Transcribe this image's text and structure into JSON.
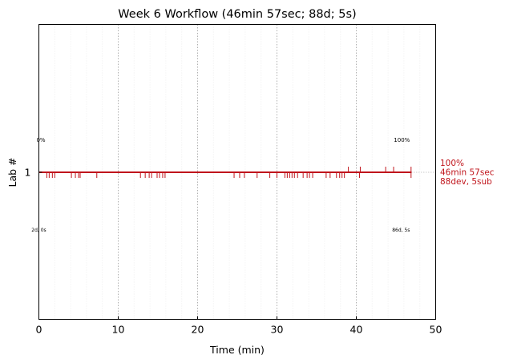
{
  "chart_data": {
    "type": "line",
    "title": "Week 6 Workflow (46min 57sec; 88d; 5s)",
    "xlabel": "Time (min)",
    "ylabel": "Lab #",
    "xlim": [
      0,
      50
    ],
    "xticks": [
      "0",
      "10",
      "20",
      "30",
      "40",
      "50"
    ],
    "yticks": [
      "1"
    ],
    "grid": "vertical dotted at major ticks, faint at minor ticks",
    "colors": {
      "line": "#c0151c",
      "grid": "#b0b0b0",
      "axis": "#000000"
    },
    "series": [
      {
        "lab": 1,
        "start": 0,
        "end": 46.95,
        "dev_ticks": [
          1.0,
          1.3,
          1.7,
          2.0,
          4.1,
          4.6,
          5.0,
          5.2,
          7.3,
          12.8,
          13.4,
          13.9,
          14.2,
          14.9,
          15.2,
          15.6,
          15.9,
          24.6,
          25.3,
          25.9,
          27.5,
          29.1,
          30.0,
          31.0,
          31.3,
          31.6,
          31.9,
          32.2,
          32.6,
          33.3,
          33.8,
          34.1,
          34.5,
          36.2,
          36.7,
          37.5,
          37.9,
          38.2,
          38.5,
          40.4,
          46.9
        ],
        "sub_ticks": [
          39.0,
          40.5,
          43.7,
          44.7,
          46.9
        ],
        "annotations": {
          "start_pct": "0%",
          "end_pct": "100%",
          "start_counts": "2d, 0s",
          "end_counts": "86d, 5s"
        },
        "summary": [
          "100%",
          "46min 57sec",
          "88dev, 5sub"
        ]
      }
    ]
  }
}
